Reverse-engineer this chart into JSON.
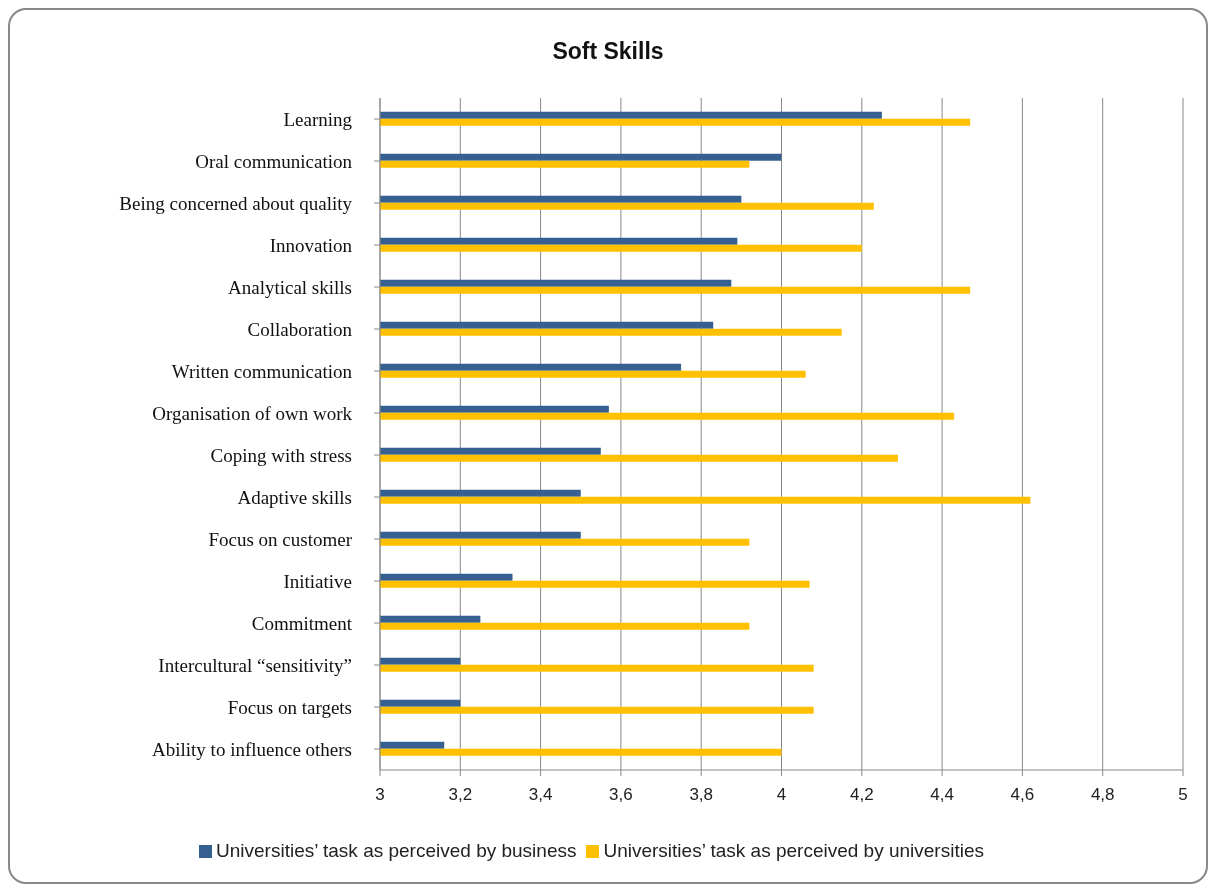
{
  "chart_data": {
    "type": "bar",
    "orientation": "horizontal",
    "title": "Soft Skills",
    "categories": [
      "Learning",
      "Oral communication",
      "Being concerned about quality",
      "Innovation",
      "Analytical skills",
      "Collaboration",
      "Written communication",
      "Organisation of own work",
      "Coping with stress",
      "Adaptive skills",
      "Focus on customer",
      "Initiative",
      "Commitment",
      "Intercultural “sensitivity”",
      "Focus on targets",
      "Ability to influence others"
    ],
    "series": [
      {
        "name": "Universities’ task as perceived by business",
        "color": "#35608f",
        "values": [
          4.25,
          4.0,
          3.9,
          3.89,
          3.875,
          3.83,
          3.75,
          3.57,
          3.55,
          3.5,
          3.5,
          3.33,
          3.25,
          3.2,
          3.2,
          3.16
        ]
      },
      {
        "name": "Universities’ task as perceived by universities",
        "color": "#ffc000",
        "values": [
          4.47,
          3.92,
          4.23,
          4.2,
          4.47,
          4.15,
          4.06,
          4.43,
          4.29,
          4.62,
          3.92,
          4.07,
          3.92,
          4.08,
          4.08,
          4.0
        ]
      }
    ],
    "xlim": [
      3,
      5
    ],
    "xticks": [
      {
        "value": 3,
        "label": "3"
      },
      {
        "value": 3.2,
        "label": "3,2"
      },
      {
        "value": 3.4,
        "label": "3,4"
      },
      {
        "value": 3.6,
        "label": "3,6"
      },
      {
        "value": 3.8,
        "label": "3,8"
      },
      {
        "value": 4,
        "label": "4"
      },
      {
        "value": 4.2,
        "label": "4,2"
      },
      {
        "value": 4.4,
        "label": "4,4"
      },
      {
        "value": 4.6,
        "label": "4,6"
      },
      {
        "value": 4.8,
        "label": "4,8"
      },
      {
        "value": 5,
        "label": "5"
      }
    ],
    "grid": "x",
    "legend": "bottom"
  }
}
